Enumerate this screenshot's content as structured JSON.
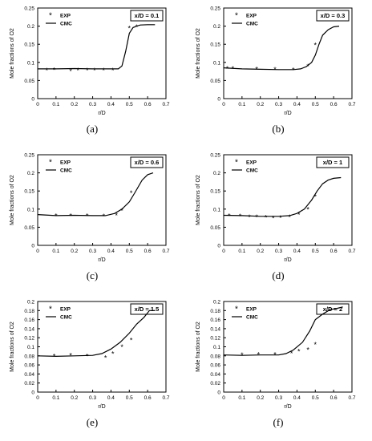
{
  "chart_data": [
    {
      "type": "line",
      "caption": "(a)",
      "annotation": "x/D = 0.1",
      "xlabel": "r/D",
      "ylabel": "Mole fractions of O2",
      "xlim": [
        0,
        0.7
      ],
      "ylim": [
        0,
        0.25
      ],
      "xticks": [
        "0",
        "0.1",
        "0.2",
        "0.3",
        "0.4",
        "0.5",
        "0.6",
        "0.7"
      ],
      "yticks": [
        "0",
        "0.05",
        "0.1",
        "0.15",
        "0.2",
        "0.25"
      ],
      "legend": [
        "EXP",
        "CMC"
      ],
      "legend_position": "top-left",
      "series": [
        {
          "name": "CMC",
          "x": [
            0,
            0.1,
            0.2,
            0.3,
            0.4,
            0.44,
            0.46,
            0.48,
            0.5,
            0.52,
            0.54,
            0.56,
            0.6,
            0.64
          ],
          "y": [
            0.082,
            0.082,
            0.083,
            0.082,
            0.082,
            0.082,
            0.09,
            0.13,
            0.18,
            0.196,
            0.2,
            0.203,
            0.204,
            0.204
          ]
        },
        {
          "name": "EXP",
          "x": [
            0.05,
            0.09,
            0.18,
            0.22,
            0.27,
            0.31,
            0.36,
            0.41,
            0.5,
            0.54
          ],
          "y": [
            0.078,
            0.08,
            0.076,
            0.079,
            0.079,
            0.079,
            0.078,
            0.079,
            0.195,
            0.198
          ]
        }
      ]
    },
    {
      "type": "line",
      "caption": "(b)",
      "annotation": "x/D = 0.3",
      "xlabel": "r/D",
      "ylabel": "Mole fractions of O2",
      "xlim": [
        0,
        0.7
      ],
      "ylim": [
        0,
        0.25
      ],
      "xticks": [
        "0",
        "0.1",
        "0.2",
        "0.3",
        "0.4",
        "0.5",
        "0.6",
        "0.7"
      ],
      "yticks": [
        "0",
        "0.05",
        "0.1",
        "0.15",
        "0.2",
        "0.25"
      ],
      "legend": [
        "EXP",
        "CMC"
      ],
      "legend_position": "top-left",
      "series": [
        {
          "name": "CMC",
          "x": [
            0,
            0.1,
            0.2,
            0.3,
            0.38,
            0.42,
            0.45,
            0.48,
            0.5,
            0.52,
            0.54,
            0.57,
            0.6,
            0.63
          ],
          "y": [
            0.085,
            0.082,
            0.081,
            0.08,
            0.08,
            0.082,
            0.088,
            0.1,
            0.12,
            0.15,
            0.175,
            0.19,
            0.198,
            0.2
          ]
        },
        {
          "name": "EXP",
          "x": [
            0.02,
            0.05,
            0.18,
            0.28,
            0.38,
            0.46,
            0.5
          ],
          "y": [
            0.083,
            0.083,
            0.082,
            0.081,
            0.08,
            0.09,
            0.148
          ]
        }
      ]
    },
    {
      "type": "line",
      "caption": "(c)",
      "annotation": "x/D = 0.6",
      "xlabel": "r/D",
      "ylabel": "Mole fractions of O2",
      "xlim": [
        0,
        0.7
      ],
      "ylim": [
        0,
        0.25
      ],
      "xticks": [
        "0",
        "0.1",
        "0.2",
        "0.3",
        "0.4",
        "0.5",
        "0.6",
        "0.7"
      ],
      "yticks": [
        "0",
        "0.05",
        "0.1",
        "0.15",
        "0.2",
        "0.25"
      ],
      "legend": [
        "EXP",
        "CMC"
      ],
      "legend_position": "top-left",
      "series": [
        {
          "name": "CMC",
          "x": [
            0,
            0.1,
            0.2,
            0.3,
            0.37,
            0.42,
            0.46,
            0.5,
            0.53,
            0.57,
            0.6,
            0.63
          ],
          "y": [
            0.085,
            0.082,
            0.083,
            0.082,
            0.082,
            0.088,
            0.1,
            0.12,
            0.145,
            0.18,
            0.195,
            0.2
          ]
        },
        {
          "name": "EXP",
          "x": [
            0.1,
            0.18,
            0.27,
            0.36,
            0.43,
            0.46,
            0.51
          ],
          "y": [
            0.082,
            0.082,
            0.082,
            0.081,
            0.083,
            0.096,
            0.145
          ]
        }
      ]
    },
    {
      "type": "line",
      "caption": "(d)",
      "annotation": "x/D = 1",
      "xlabel": "r/D",
      "ylabel": "Mole fractions of O2",
      "xlim": [
        0,
        0.7
      ],
      "ylim": [
        0,
        0.25
      ],
      "xticks": [
        "0",
        "0.1",
        "0.2",
        "0.3",
        "0.4",
        "0.5",
        "0.6",
        "0.7"
      ],
      "yticks": [
        "0",
        "0.05",
        "0.1",
        "0.15",
        "0.2",
        "0.25"
      ],
      "legend": [
        "EXP",
        "CMC"
      ],
      "legend_position": "top-left",
      "series": [
        {
          "name": "CMC",
          "x": [
            0,
            0.1,
            0.2,
            0.3,
            0.36,
            0.4,
            0.44,
            0.48,
            0.51,
            0.54,
            0.57,
            0.6,
            0.64
          ],
          "y": [
            0.083,
            0.082,
            0.08,
            0.08,
            0.082,
            0.088,
            0.1,
            0.125,
            0.15,
            0.17,
            0.18,
            0.185,
            0.187
          ]
        },
        {
          "name": "EXP",
          "x": [
            0.03,
            0.09,
            0.14,
            0.18,
            0.23,
            0.27,
            0.31,
            0.36,
            0.41,
            0.46,
            0.5
          ],
          "y": [
            0.082,
            0.081,
            0.079,
            0.078,
            0.077,
            0.075,
            0.076,
            0.079,
            0.085,
            0.1,
            0.135
          ]
        }
      ]
    },
    {
      "type": "line",
      "caption": "(e)",
      "annotation": "x/D = 1.5",
      "xlabel": "r/D",
      "ylabel": "Mole fractions of O2",
      "xlim": [
        0,
        0.7
      ],
      "ylim": [
        0,
        0.2
      ],
      "xticks": [
        "0",
        "0.1",
        "0.2",
        "0.3",
        "0.4",
        "0.5",
        "0.6",
        "0.7"
      ],
      "yticks": [
        "0",
        "0.02",
        "0.04",
        "0.06",
        "0.08",
        "0.1",
        "0.12",
        "0.14",
        "0.16",
        "0.18",
        "0.2"
      ],
      "legend": [
        "EXP",
        "CMC"
      ],
      "legend_position": "top-left",
      "series": [
        {
          "name": "CMC",
          "x": [
            0,
            0.1,
            0.2,
            0.3,
            0.35,
            0.4,
            0.45,
            0.5,
            0.54,
            0.58,
            0.61,
            0.64
          ],
          "y": [
            0.08,
            0.079,
            0.08,
            0.081,
            0.085,
            0.095,
            0.11,
            0.13,
            0.15,
            0.165,
            0.18,
            0.18
          ]
        },
        {
          "name": "EXP",
          "x": [
            0.09,
            0.18,
            0.27,
            0.37,
            0.41,
            0.46,
            0.51
          ],
          "y": [
            0.08,
            0.081,
            0.08,
            0.076,
            0.085,
            0.1,
            0.115
          ]
        }
      ]
    },
    {
      "type": "line",
      "caption": "(f)",
      "annotation": "x/D = 2",
      "xlabel": "r/D",
      "ylabel": "Mole fractions of O2",
      "xlim": [
        0,
        0.7
      ],
      "ylim": [
        0,
        0.2
      ],
      "xticks": [
        "0",
        "0.1",
        "0.2",
        "0.3",
        "0.4",
        "0.5",
        "0.6",
        "0.7"
      ],
      "yticks": [
        "0",
        "0.02",
        "0.04",
        "0.06",
        "0.08",
        "0.1",
        "0.12",
        "0.14",
        "0.16",
        "0.18",
        "0.2"
      ],
      "legend": [
        "EXP",
        "CMC"
      ],
      "legend_position": "top-left",
      "series": [
        {
          "name": "CMC",
          "x": [
            0,
            0.1,
            0.2,
            0.3,
            0.34,
            0.38,
            0.43,
            0.47,
            0.5,
            0.54,
            0.58,
            0.62,
            0.65
          ],
          "y": [
            0.082,
            0.081,
            0.082,
            0.082,
            0.085,
            0.093,
            0.11,
            0.135,
            0.16,
            0.172,
            0.182,
            0.185,
            0.188
          ]
        },
        {
          "name": "EXP",
          "x": [
            0.1,
            0.19,
            0.28,
            0.37,
            0.41,
            0.46,
            0.5
          ],
          "y": [
            0.082,
            0.083,
            0.083,
            0.086,
            0.09,
            0.094,
            0.105
          ]
        }
      ]
    }
  ]
}
